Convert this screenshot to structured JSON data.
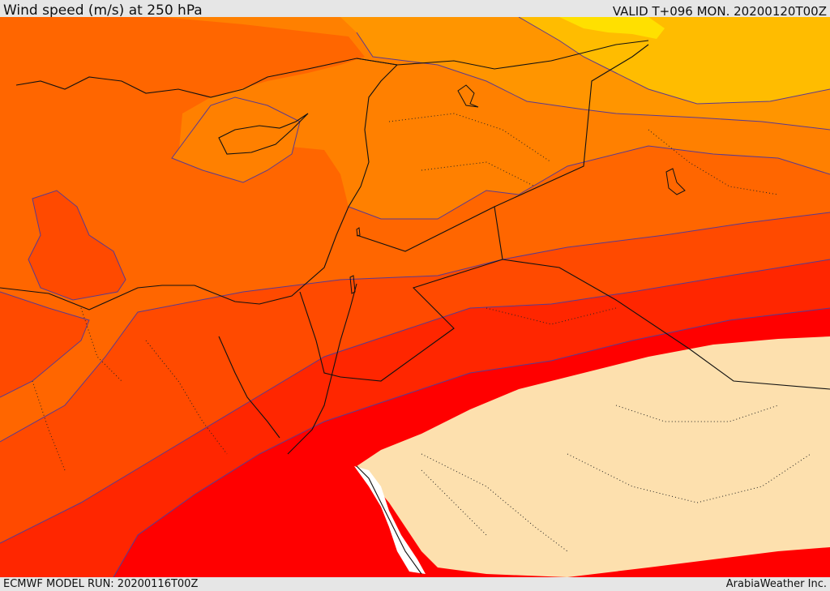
{
  "header": {
    "title": "Wind speed (m/s) at 250 hPa",
    "valid_time": "VALID T+096 MON. 20200120T00Z"
  },
  "footer": {
    "model_run": "ECMWF MODEL RUN: 20200116T00Z",
    "credit": "ArabiaWeather Inc."
  },
  "map": {
    "region": "Eastern Mediterranean / Middle East",
    "field": "wind speed",
    "level": "250 hPa",
    "colors": {
      "yellow": "#ffe000",
      "light_orange": "#ffbc00",
      "orange": "#ff9500",
      "orange2": "#ff8000",
      "orange3": "#ff6600",
      "red_orange": "#ff4a00",
      "red1": "#ff2600",
      "red2": "#ff0000",
      "calm": "#fde0ae",
      "missing": "#ffffff"
    }
  }
}
